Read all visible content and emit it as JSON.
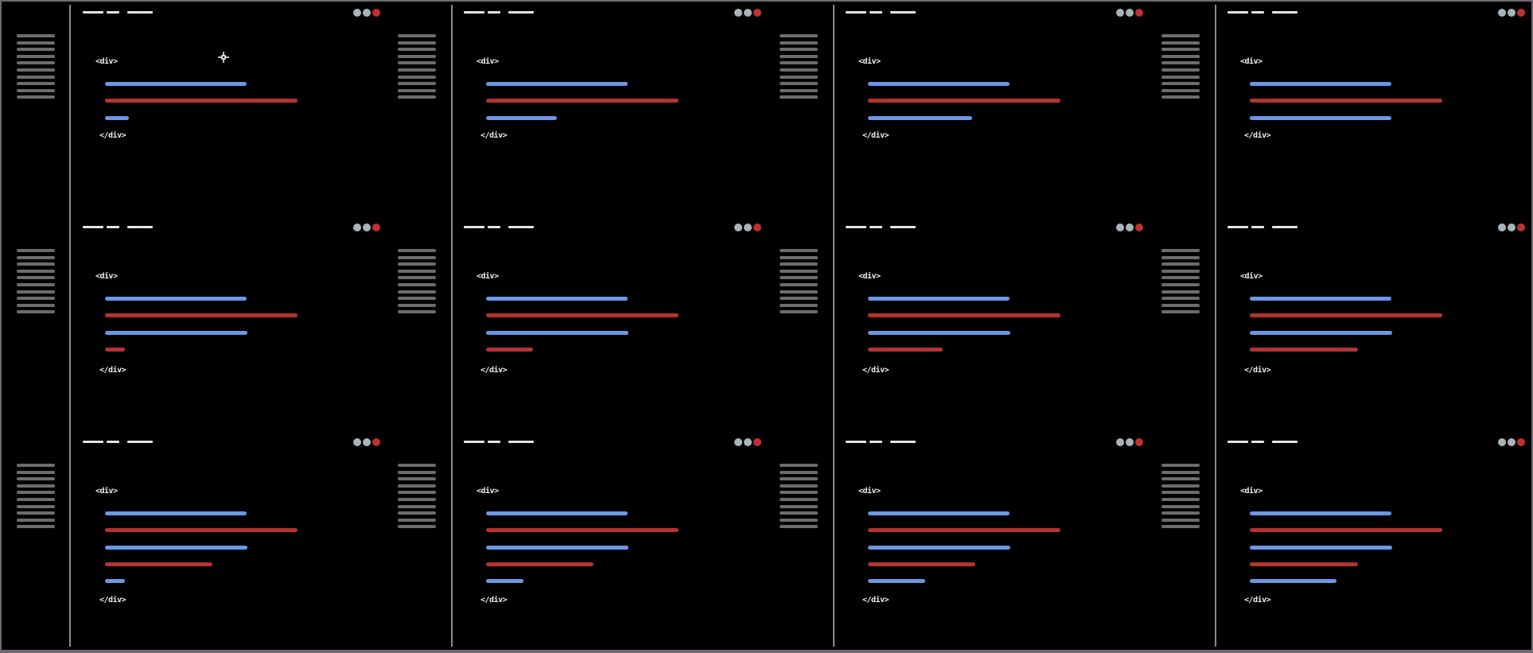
{
  "open_tag": "<div>",
  "close_tag": "</div>",
  "colors": {
    "background": "#000000",
    "blue_bar": "#6a97e6",
    "red_bar": "#b33332",
    "gray_dot": "#a9b4bb",
    "red_dot": "#bf3030",
    "gutter_line": "#6c6c6c",
    "separator": "#8a8a8a",
    "frame": "#6e6a70"
  },
  "icons": {
    "window_controls": [
      "gray-dot-icon",
      "gray-dot-icon",
      "red-dot-icon"
    ],
    "cursor": "crosshair-cursor-icon"
  },
  "columns": [
    {
      "rows": [
        {
          "bars": [
            {
              "color": "blue",
              "fraction": 0.734
            },
            {
              "color": "red",
              "fraction": 1.0
            },
            {
              "color": "blue",
              "fraction": 0.122
            }
          ]
        },
        {
          "bars": [
            {
              "color": "blue",
              "fraction": 0.734
            },
            {
              "color": "red",
              "fraction": 1.0
            },
            {
              "color": "blue",
              "fraction": 0.74
            },
            {
              "color": "red",
              "fraction": 0.102
            }
          ]
        },
        {
          "bars": [
            {
              "color": "blue",
              "fraction": 0.734
            },
            {
              "color": "red",
              "fraction": 1.0
            },
            {
              "color": "blue",
              "fraction": 0.74
            },
            {
              "color": "red",
              "fraction": 0.558
            },
            {
              "color": "blue",
              "fraction": 0.102
            }
          ]
        }
      ]
    },
    {
      "rows": [
        {
          "bars": [
            {
              "color": "blue",
              "fraction": 0.734
            },
            {
              "color": "red",
              "fraction": 1.0
            },
            {
              "color": "blue",
              "fraction": 0.367
            }
          ]
        },
        {
          "bars": [
            {
              "color": "blue",
              "fraction": 0.734
            },
            {
              "color": "red",
              "fraction": 1.0
            },
            {
              "color": "blue",
              "fraction": 0.74
            },
            {
              "color": "red",
              "fraction": 0.245
            }
          ]
        },
        {
          "bars": [
            {
              "color": "blue",
              "fraction": 0.734
            },
            {
              "color": "red",
              "fraction": 1.0
            },
            {
              "color": "blue",
              "fraction": 0.74
            },
            {
              "color": "red",
              "fraction": 0.558
            },
            {
              "color": "blue",
              "fraction": 0.194
            }
          ]
        }
      ]
    },
    {
      "rows": [
        {
          "bars": [
            {
              "color": "blue",
              "fraction": 0.734
            },
            {
              "color": "red",
              "fraction": 1.0
            },
            {
              "color": "blue",
              "fraction": 0.541
            }
          ]
        },
        {
          "bars": [
            {
              "color": "blue",
              "fraction": 0.734
            },
            {
              "color": "red",
              "fraction": 1.0
            },
            {
              "color": "blue",
              "fraction": 0.74
            },
            {
              "color": "red",
              "fraction": 0.388
            }
          ]
        },
        {
          "bars": [
            {
              "color": "blue",
              "fraction": 0.734
            },
            {
              "color": "red",
              "fraction": 1.0
            },
            {
              "color": "blue",
              "fraction": 0.74
            },
            {
              "color": "red",
              "fraction": 0.558
            },
            {
              "color": "blue",
              "fraction": 0.296
            }
          ]
        }
      ]
    },
    {
      "rows": [
        {
          "bars": [
            {
              "color": "blue",
              "fraction": 0.734
            },
            {
              "color": "red",
              "fraction": 1.0
            },
            {
              "color": "blue",
              "fraction": 0.734
            }
          ]
        },
        {
          "bars": [
            {
              "color": "blue",
              "fraction": 0.734
            },
            {
              "color": "red",
              "fraction": 1.0
            },
            {
              "color": "blue",
              "fraction": 0.74
            },
            {
              "color": "red",
              "fraction": 0.561
            }
          ]
        },
        {
          "bars": [
            {
              "color": "blue",
              "fraction": 0.734
            },
            {
              "color": "red",
              "fraction": 1.0
            },
            {
              "color": "blue",
              "fraction": 0.74
            },
            {
              "color": "red",
              "fraction": 0.561
            },
            {
              "color": "blue",
              "fraction": 0.449
            }
          ]
        }
      ]
    }
  ]
}
